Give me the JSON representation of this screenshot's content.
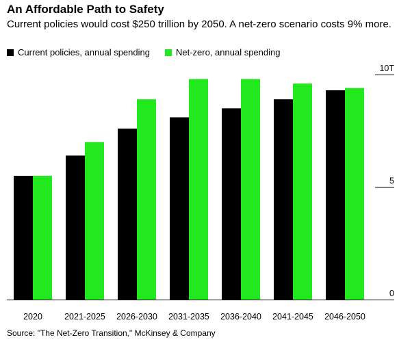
{
  "chart_data": {
    "type": "bar",
    "title": "An Affordable Path to Safety",
    "subtitle": "Current policies would cost $250 trillion by 2050. A net-zero scenario costs 9% more.",
    "categories": [
      "2020",
      "2021-2025",
      "2026-2030",
      "2031-2035",
      "2036-2040",
      "2041-2045",
      "2046-2050"
    ],
    "series": [
      {
        "name": "Current policies, annual spending",
        "color": "#000000",
        "values": [
          5.5,
          6.4,
          7.6,
          8.1,
          8.5,
          8.9,
          9.3
        ]
      },
      {
        "name": "Net-zero, annual spending",
        "color": "#22e81e",
        "values": [
          5.5,
          7.0,
          8.9,
          9.8,
          9.8,
          9.6,
          9.4
        ]
      }
    ],
    "ylim": [
      0,
      10
    ],
    "yticks": [
      {
        "value": 0,
        "label": "0"
      },
      {
        "value": 5,
        "label": "5"
      },
      {
        "value": 10,
        "label": "10T"
      }
    ],
    "y_axis_position": "right",
    "grid": false,
    "legend_position": "top-left",
    "source": "Source: \"The Net-Zero Transition,\" McKinsey & Company"
  }
}
